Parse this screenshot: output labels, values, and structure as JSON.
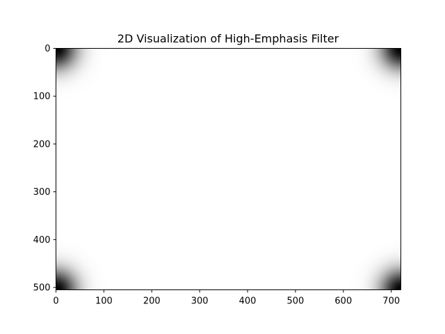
{
  "chart_data": {
    "type": "heatmap",
    "title": "2D Visualization of High-Emphasis Filter",
    "xlabel": "",
    "ylabel": "",
    "width": 720,
    "height": 505,
    "xlim": [
      0,
      720
    ],
    "ylim": [
      505,
      0
    ],
    "y_axis_inverted": true,
    "xticks": [
      0,
      100,
      200,
      300,
      400,
      500,
      600,
      700
    ],
    "yticks": [
      0,
      100,
      200,
      300,
      400,
      500
    ],
    "colormap": "gray",
    "colormap_colors": [
      "#000000",
      "#ffffff"
    ],
    "value_range": [
      0,
      1
    ],
    "filter": {
      "kind": "gaussian-high-emphasis",
      "dark_regions": [
        "top-left",
        "top-right",
        "bottom-left",
        "bottom-right"
      ],
      "min_value": 0,
      "max_value": 1,
      "cutoff_radius": 30
    },
    "grid": false,
    "legend": "none"
  }
}
